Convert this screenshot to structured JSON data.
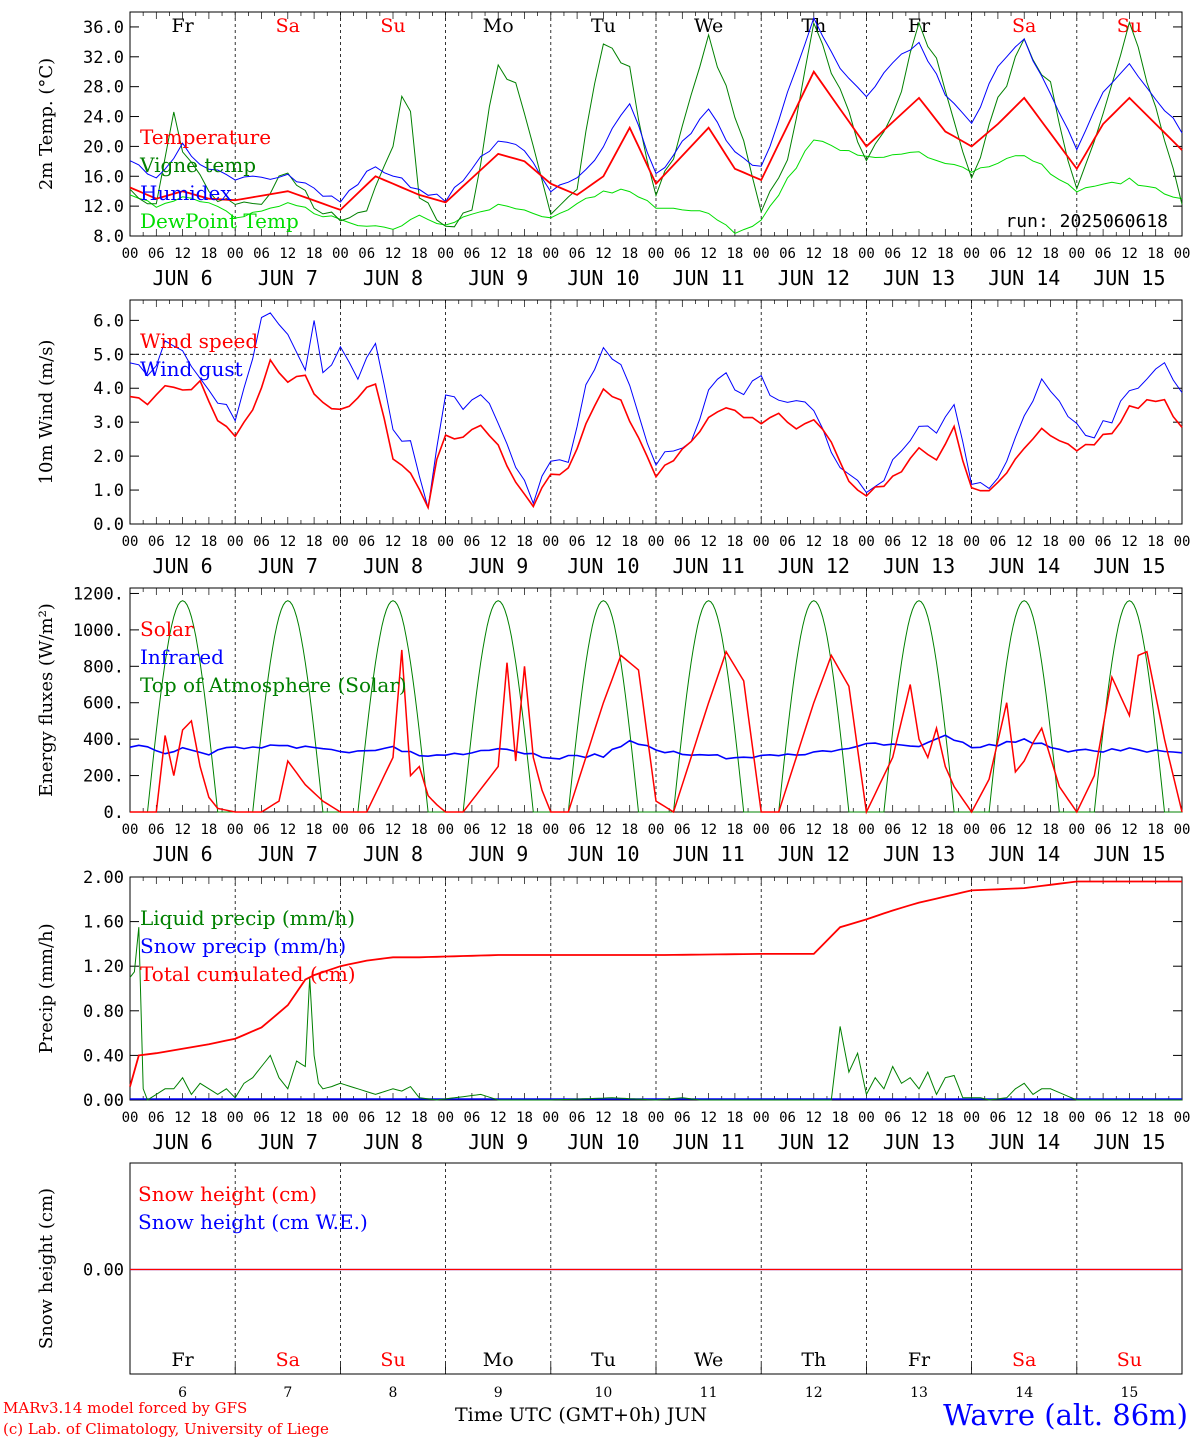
{
  "days": [
    "Fr",
    "Sa",
    "Su",
    "Mo",
    "Tu",
    "We",
    "Th",
    "Fr",
    "Sa",
    "Su"
  ],
  "day_colors": [
    "#000000",
    "#ff0000",
    "#ff0000",
    "#000000",
    "#000000",
    "#000000",
    "#000000",
    "#000000",
    "#ff0000",
    "#ff0000"
  ],
  "dates": [
    "JUN  6",
    "JUN  7",
    "JUN  8",
    "JUN  9",
    "JUN 10",
    "JUN 11",
    "JUN 12",
    "JUN 13",
    "JUN 14",
    "JUN 15"
  ],
  "date_numbers": [
    "6",
    "7",
    "8",
    "9",
    "10",
    "11",
    "12",
    "13",
    "14",
    "15"
  ],
  "hour_ticks": [
    "00",
    "06",
    "12",
    "18"
  ],
  "run_label": "run: 2025060618",
  "footer": {
    "credit1": "MARv3.14 model forced by GFS",
    "credit2": "(c) Lab. of Climatology, University of Liege",
    "xtitle": "Time UTC (GMT+0h) JUN",
    "station": "Wavre (alt. 86m)"
  },
  "colors": {
    "red": "#ff0000",
    "green": "#008000",
    "blue": "#0000ff",
    "lightgreen": "#00dd00"
  },
  "chart_data": [
    {
      "type": "line",
      "ylabel": "2m Temp. (°C)",
      "ylim": [
        8,
        38
      ],
      "yticks": [
        "8.0",
        "12.0",
        "16.0",
        "20.0",
        "24.0",
        "28.0",
        "32.0",
        "36.0"
      ],
      "grid": "vertical dashed at day boundaries",
      "x": "hours since JUN 6 00 UTC",
      "series": [
        {
          "name": "Temperature",
          "color": "#ff0000",
          "x": [
            0,
            6,
            12,
            18,
            24,
            36,
            48,
            56,
            66,
            72,
            84,
            90,
            96,
            102,
            108,
            114,
            120,
            132,
            138,
            144,
            156,
            162,
            168,
            180,
            186,
            192,
            198,
            204,
            216,
            222,
            228,
            240
          ],
          "values": [
            14.5,
            13,
            14,
            13,
            12.8,
            14,
            11.5,
            16,
            13.5,
            12.5,
            19,
            18,
            15,
            13.5,
            16,
            22.5,
            15,
            22.5,
            17,
            15.5,
            30,
            25,
            20,
            26.5,
            22,
            20,
            23,
            26.5,
            17,
            23,
            26.5,
            19.5
          ]
        },
        {
          "name": "Vigne temp",
          "color": "#008000",
          "x": [
            0,
            6,
            10,
            12,
            18,
            24,
            30,
            36,
            42,
            48,
            54,
            60,
            63,
            66,
            72,
            78,
            84,
            88,
            96,
            102,
            108,
            114,
            120,
            126,
            132,
            138,
            144,
            150,
            156,
            160,
            168,
            174,
            180,
            184,
            192,
            198,
            204,
            210,
            216,
            222,
            228,
            234,
            240
          ],
          "values": [
            14,
            12.5,
            25,
            20,
            14,
            12,
            13,
            17,
            12,
            10.5,
            11,
            20,
            30,
            13,
            9,
            12,
            31,
            28,
            11,
            15,
            34,
            30,
            13,
            22,
            35,
            24,
            12,
            18,
            37,
            30,
            18,
            24,
            36,
            32,
            15.5,
            26,
            34,
            28,
            14,
            24,
            37,
            25,
            13
          ]
        },
        {
          "name": "Humidex",
          "color": "#0000ff",
          "x": [
            0,
            6,
            12,
            18,
            24,
            36,
            48,
            56,
            66,
            72,
            84,
            90,
            96,
            102,
            108,
            114,
            120,
            132,
            138,
            144,
            156,
            162,
            168,
            174,
            180,
            186,
            192,
            198,
            204,
            216,
            222,
            228,
            240
          ],
          "values": [
            18,
            15.5,
            20,
            17,
            15.5,
            16,
            12.5,
            17.5,
            14,
            13,
            21,
            19.5,
            14,
            15.5,
            20,
            26,
            16,
            25,
            19,
            17,
            37,
            30,
            26.5,
            31,
            34,
            27,
            23,
            31,
            34,
            20,
            27,
            31,
            22
          ]
        },
        {
          "name": "DewPoint Temp",
          "color": "#00dd00",
          "x": [
            0,
            6,
            12,
            18,
            24,
            36,
            48,
            60,
            66,
            72,
            84,
            96,
            108,
            114,
            120,
            132,
            138,
            144,
            156,
            168,
            180,
            192,
            204,
            216,
            228,
            240
          ],
          "values": [
            13.5,
            12,
            13,
            12.5,
            10.5,
            12.5,
            10,
            9,
            10.5,
            9.5,
            12,
            10.5,
            14,
            14,
            12,
            11,
            8.5,
            10,
            21,
            18.5,
            19,
            16.5,
            19,
            14,
            15.5,
            13
          ]
        }
      ]
    },
    {
      "type": "line",
      "ylabel": "10m Wind (m/s)",
      "ylim": [
        0,
        6.6
      ],
      "yticks": [
        "0.0",
        "1.0",
        "2.0",
        "3.0",
        "4.0",
        "5.0",
        "6.0"
      ],
      "reference_line": 5.0,
      "series": [
        {
          "name": "Wind speed",
          "color": "#ff0000",
          "x": [
            0,
            4,
            8,
            12,
            16,
            20,
            24,
            28,
            32,
            36,
            40,
            44,
            48,
            52,
            56,
            60,
            64,
            68,
            70,
            72,
            76,
            80,
            84,
            88,
            92,
            96,
            100,
            104,
            108,
            112,
            116,
            120,
            124,
            128,
            132,
            136,
            140,
            144,
            148,
            152,
            156,
            160,
            164,
            168,
            172,
            176,
            180,
            184,
            188,
            192,
            196,
            200,
            204,
            208,
            212,
            216,
            220,
            224,
            228,
            232,
            236,
            240
          ],
          "values": [
            3.8,
            3.6,
            4.0,
            3.9,
            4.2,
            3.1,
            2.5,
            3.4,
            4.8,
            4.2,
            4.3,
            3.5,
            3.3,
            3.8,
            4.1,
            2.0,
            1.5,
            0.5,
            1.9,
            2.6,
            2.5,
            3.0,
            2.4,
            1.2,
            0.6,
            1.5,
            1.6,
            3.0,
            3.9,
            3.6,
            2.6,
            1.4,
            1.9,
            2.4,
            3.1,
            3.5,
            3.2,
            3.0,
            3.2,
            2.8,
            3.0,
            2.5,
            1.3,
            0.9,
            1.1,
            1.6,
            2.2,
            1.8,
            2.8,
            1.1,
            0.9,
            1.6,
            2.2,
            2.9,
            2.5,
            2.2,
            2.4,
            2.7,
            3.4,
            3.6,
            3.6,
            2.9
          ]
        },
        {
          "name": "Wind gust",
          "color": "#0000ff",
          "x": [
            0,
            4,
            8,
            12,
            16,
            20,
            24,
            28,
            30,
            32,
            36,
            40,
            42,
            44,
            48,
            52,
            56,
            60,
            64,
            68,
            70,
            72,
            76,
            80,
            84,
            88,
            92,
            96,
            100,
            104,
            108,
            112,
            116,
            120,
            124,
            128,
            132,
            136,
            140,
            144,
            148,
            152,
            156,
            160,
            164,
            168,
            172,
            176,
            180,
            184,
            188,
            192,
            196,
            200,
            204,
            208,
            212,
            216,
            220,
            224,
            228,
            232,
            236,
            240
          ],
          "values": [
            4.8,
            4.3,
            5.3,
            5.0,
            4.4,
            3.6,
            3.2,
            4.8,
            6.1,
            6.2,
            5.5,
            4.4,
            5.9,
            4.3,
            5.2,
            4.3,
            5.4,
            2.9,
            2.3,
            0.6,
            2.4,
            3.9,
            3.5,
            3.9,
            3.0,
            1.6,
            0.7,
            1.9,
            1.9,
            4.0,
            5.1,
            4.7,
            3.2,
            1.8,
            2.3,
            2.5,
            3.9,
            4.4,
            3.8,
            4.4,
            3.5,
            3.8,
            3.4,
            2.1,
            1.5,
            1.1,
            1.4,
            2.2,
            3.0,
            2.7,
            3.5,
            1.2,
            1.2,
            1.8,
            3.2,
            4.2,
            3.7,
            2.8,
            2.7,
            3.1,
            3.9,
            4.2,
            4.6,
            3.7
          ]
        }
      ]
    },
    {
      "type": "line",
      "ylabel": "Energy fluxes (W/m²)",
      "ylim": [
        0,
        1230
      ],
      "yticks": [
        "0.",
        "200.",
        "400.",
        "600.",
        "800.",
        "1000.",
        "1200."
      ],
      "series": [
        {
          "name": "Solar",
          "color": "#ff0000",
          "x": [
            0,
            6,
            8,
            10,
            12,
            14,
            16,
            18,
            20,
            24,
            30,
            34,
            36,
            40,
            44,
            48,
            54,
            60,
            62,
            64,
            66,
            68,
            70,
            72,
            76,
            84,
            86,
            88,
            90,
            92,
            94,
            96,
            100,
            104,
            108,
            112,
            116,
            120,
            124,
            128,
            132,
            136,
            140,
            144,
            148,
            152,
            156,
            160,
            164,
            168,
            174,
            178,
            180,
            182,
            184,
            186,
            188,
            192,
            196,
            200,
            202,
            204,
            206,
            208,
            210,
            212,
            216,
            220,
            224,
            228,
            230,
            232,
            236,
            240
          ],
          "values": [
            0,
            0,
            420,
            200,
            450,
            500,
            250,
            80,
            20,
            0,
            0,
            60,
            280,
            150,
            60,
            0,
            0,
            300,
            890,
            200,
            250,
            90,
            40,
            0,
            0,
            250,
            820,
            280,
            800,
            300,
            120,
            0,
            0,
            300,
            600,
            860,
            780,
            60,
            0,
            300,
            600,
            880,
            720,
            0,
            0,
            300,
            600,
            860,
            690,
            0,
            300,
            700,
            400,
            300,
            460,
            250,
            140,
            0,
            180,
            600,
            220,
            280,
            380,
            460,
            300,
            140,
            0,
            200,
            740,
            530,
            860,
            880,
            400,
            0
          ]
        },
        {
          "name": "Infrared",
          "color": "#0000ff",
          "x": [
            0,
            8,
            12,
            18,
            24,
            36,
            48,
            60,
            66,
            72,
            84,
            96,
            108,
            114,
            120,
            132,
            144,
            156,
            168,
            180,
            186,
            192,
            204,
            216,
            228,
            240
          ],
          "values": [
            365,
            330,
            350,
            320,
            355,
            360,
            330,
            350,
            320,
            315,
            345,
            300,
            310,
            390,
            335,
            305,
            300,
            320,
            380,
            350,
            410,
            360,
            390,
            330,
            350,
            320
          ]
        },
        {
          "name": "Top of Atmosphere (Solar)",
          "color": "#008000",
          "envelope": "daily cosine 04:00-20:00 UTC",
          "peak": 1160
        }
      ]
    },
    {
      "type": "line",
      "ylabel": "Precip (mm/h)",
      "ylim": [
        0,
        2.0
      ],
      "yticks": [
        "0.00",
        "0.40",
        "0.80",
        "1.20",
        "1.60",
        "2.00"
      ],
      "series": [
        {
          "name": "Liquid precip (mm/h)",
          "color": "#008000",
          "x": [
            0,
            1,
            2,
            3,
            4,
            6,
            8,
            10,
            12,
            14,
            16,
            18,
            20,
            22,
            24,
            26,
            28,
            30,
            32,
            34,
            36,
            38,
            40,
            41,
            42,
            43,
            44,
            46,
            48,
            52,
            56,
            60,
            62,
            64,
            66,
            70,
            80,
            84,
            90,
            96,
            110,
            120,
            126,
            130,
            140,
            160,
            162,
            164,
            166,
            168,
            170,
            172,
            174,
            176,
            178,
            180,
            182,
            184,
            186,
            188,
            190,
            192,
            194,
            196,
            200,
            202,
            204,
            206,
            208,
            210,
            216,
            240
          ],
          "values": [
            1.1,
            1.15,
            1.55,
            0.1,
            0,
            0.05,
            0.1,
            0.1,
            0.2,
            0.05,
            0.15,
            0.1,
            0.05,
            0.1,
            0.02,
            0.15,
            0.2,
            0.3,
            0.4,
            0.2,
            0.1,
            0.35,
            0.3,
            1.1,
            0.4,
            0.15,
            0.1,
            0.12,
            0.15,
            0.1,
            0.05,
            0.1,
            0.08,
            0.12,
            0.02,
            0,
            0.05,
            0,
            0,
            0,
            0.02,
            0,
            0.02,
            0,
            0,
            0,
            0.66,
            0.25,
            0.42,
            0.05,
            0.2,
            0.1,
            0.3,
            0.15,
            0.2,
            0.1,
            0.25,
            0.05,
            0.2,
            0.22,
            0.02,
            0.02,
            0.02,
            0,
            0.02,
            0.1,
            0.15,
            0.05,
            0.1,
            0.1,
            0,
            0
          ]
        },
        {
          "name": "Snow precip (mm/h)",
          "color": "#0000ff",
          "values": "0 throughout"
        },
        {
          "name": "Total cumulated (cm)",
          "color": "#ff0000",
          "x": [
            0,
            2,
            6,
            12,
            18,
            24,
            30,
            36,
            40,
            42,
            48,
            54,
            60,
            66,
            84,
            96,
            120,
            144,
            156,
            162,
            168,
            174,
            180,
            192,
            204,
            216,
            240
          ],
          "values": [
            0.12,
            0.4,
            0.42,
            0.46,
            0.5,
            0.55,
            0.65,
            0.85,
            1.08,
            1.12,
            1.2,
            1.25,
            1.28,
            1.28,
            1.3,
            1.3,
            1.3,
            1.31,
            1.31,
            1.55,
            1.62,
            1.7,
            1.77,
            1.88,
            1.9,
            1.96,
            1.96
          ]
        }
      ]
    },
    {
      "type": "line",
      "ylabel": "Snow height (cm)",
      "yticks": [
        "0.00"
      ],
      "series": [
        {
          "name": "Snow height (cm)",
          "color": "#ff0000",
          "values": "0.00 throughout"
        },
        {
          "name": "Snow height (cm W.E.)",
          "color": "#0000ff",
          "values": "0.00 throughout"
        }
      ]
    }
  ]
}
